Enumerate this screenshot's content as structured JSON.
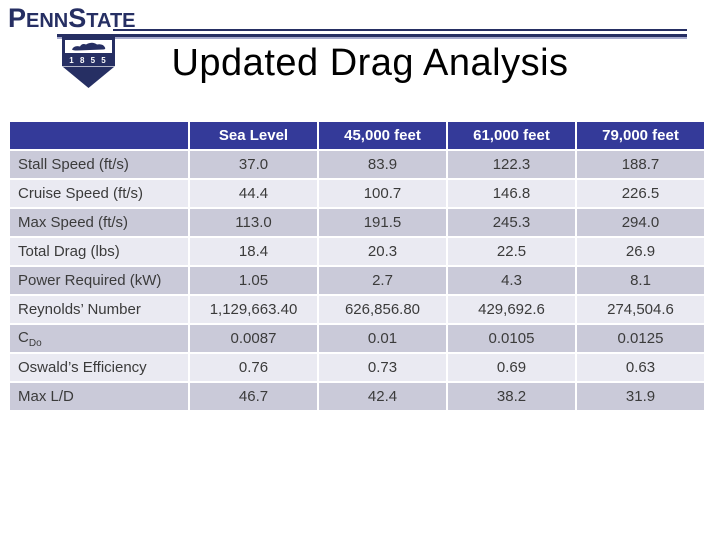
{
  "slide": {
    "title": "Updated Drag Analysis"
  },
  "logo": {
    "wordmark": {
      "p": "P",
      "enn": "ENN",
      "s": "S",
      "tate": "TATE"
    },
    "shield_year": "1 8 5 5",
    "lion_icon": "nittany-lion-icon"
  },
  "colors": {
    "header_navy": "#343a99",
    "row_dark": "#cacad9",
    "row_light": "#eaeaf2",
    "logo_navy": "#262f63"
  },
  "table": {
    "columns": [
      "",
      "Sea Level",
      "45,000 feet",
      "61,000 feet",
      "79,000 feet"
    ],
    "rows": [
      {
        "label": "Stall Speed (ft/s)",
        "values": [
          "37.0",
          "83.9",
          "122.3",
          "188.7"
        ]
      },
      {
        "label": "Cruise Speed (ft/s)",
        "values": [
          "44.4",
          "100.7",
          "146.8",
          "226.5"
        ]
      },
      {
        "label": "Max Speed (ft/s)",
        "values": [
          "113.0",
          "191.5",
          "245.3",
          "294.0"
        ]
      },
      {
        "label": "Total Drag (lbs)",
        "values": [
          "18.4",
          "20.3",
          "22.5",
          "26.9"
        ]
      },
      {
        "label": "Power Required (kW)",
        "values": [
          "1.05",
          "2.7",
          "4.3",
          "8.1"
        ]
      },
      {
        "label": "Reynolds’  Number",
        "values": [
          "1,129,663.40",
          "626,856.80",
          "429,692.6",
          "274,504.6"
        ]
      },
      {
        "label": "C",
        "label_sub": "Do",
        "values": [
          "0.0087",
          "0.01",
          "0.0105",
          "0.0125"
        ]
      },
      {
        "label": "Oswald’s Efficiency",
        "values": [
          "0.76",
          "0.73",
          "0.69",
          "0.63"
        ]
      },
      {
        "label": "Max L/D",
        "values": [
          "46.7",
          "42.4",
          "38.2",
          "31.9"
        ]
      }
    ]
  }
}
